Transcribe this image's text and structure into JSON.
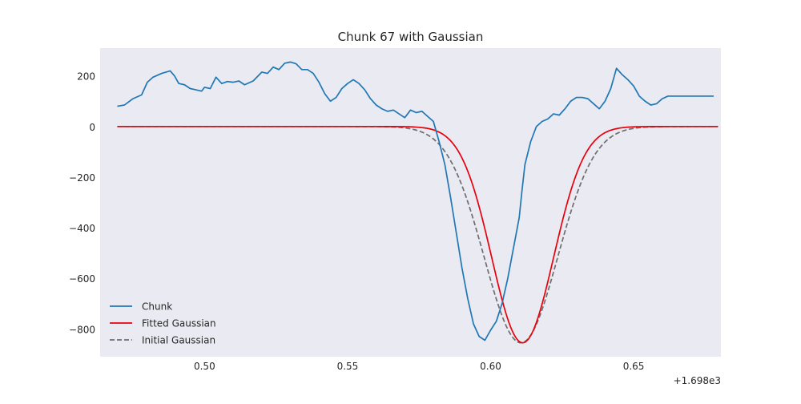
{
  "chart_data": {
    "type": "line",
    "title": "Chunk 67 with Gaussian",
    "xlabel": "",
    "ylabel": "",
    "x_offset_label": "+1.698e3",
    "xlim": [
      0.4635,
      0.6805
    ],
    "ylim": [
      -910,
      310
    ],
    "x_ticks": [
      0.5,
      0.55,
      0.6,
      0.65
    ],
    "x_tick_labels": [
      "0.50",
      "0.55",
      "0.60",
      "0.65"
    ],
    "y_ticks": [
      200,
      0,
      -200,
      -400,
      -600,
      -800
    ],
    "y_tick_labels": [
      "200",
      "0",
      "−200",
      "−400",
      "−600",
      "−800"
    ],
    "grid": false,
    "background": "#eaeaf2",
    "legend_position": "lower-left",
    "series": [
      {
        "name": "Chunk",
        "color": "#1f77b4",
        "style": "solid",
        "x": [
          0.4695,
          0.472,
          0.475,
          0.478,
          0.48,
          0.482,
          0.485,
          0.488,
          0.4895,
          0.491,
          0.493,
          0.495,
          0.497,
          0.499,
          0.5,
          0.502,
          0.504,
          0.506,
          0.508,
          0.51,
          0.512,
          0.514,
          0.517,
          0.52,
          0.522,
          0.524,
          0.526,
          0.528,
          0.53,
          0.532,
          0.534,
          0.536,
          0.538,
          0.54,
          0.542,
          0.544,
          0.546,
          0.548,
          0.55,
          0.552,
          0.554,
          0.556,
          0.558,
          0.56,
          0.562,
          0.564,
          0.566,
          0.568,
          0.57,
          0.572,
          0.574,
          0.576,
          0.578,
          0.58,
          0.582,
          0.584,
          0.586,
          0.588,
          0.59,
          0.592,
          0.594,
          0.596,
          0.598,
          0.6,
          0.602,
          0.604,
          0.606,
          0.608,
          0.61,
          0.611,
          0.612,
          0.614,
          0.616,
          0.618,
          0.62,
          0.622,
          0.624,
          0.626,
          0.628,
          0.63,
          0.632,
          0.634,
          0.636,
          0.638,
          0.64,
          0.642,
          0.644,
          0.646,
          0.648,
          0.65,
          0.652,
          0.654,
          0.656,
          0.658,
          0.66,
          0.662,
          0.664,
          0.666,
          0.668,
          0.67,
          0.672,
          0.674,
          0.676,
          0.678
        ],
        "y": [
          80,
          85,
          110,
          125,
          175,
          195,
          210,
          220,
          200,
          170,
          165,
          150,
          145,
          140,
          155,
          150,
          195,
          170,
          178,
          175,
          180,
          165,
          180,
          215,
          210,
          235,
          225,
          250,
          255,
          248,
          225,
          225,
          210,
          175,
          130,
          100,
          115,
          150,
          170,
          185,
          170,
          145,
          110,
          85,
          70,
          60,
          65,
          50,
          35,
          65,
          55,
          60,
          40,
          20,
          -60,
          -150,
          -280,
          -420,
          -560,
          -680,
          -780,
          -830,
          -845,
          -805,
          -770,
          -700,
          -600,
          -480,
          -360,
          -250,
          -150,
          -60,
          0,
          20,
          30,
          50,
          45,
          70,
          100,
          115,
          115,
          110,
          90,
          70,
          100,
          150,
          230,
          205,
          185,
          160,
          120,
          100,
          85,
          90,
          110,
          120,
          120,
          120,
          120,
          120,
          120,
          120,
          120,
          120
        ],
        "note_y_units": ""
      },
      {
        "name": "Fitted Gaussian",
        "color": "#e8000b",
        "style": "solid",
        "gaussian": {
          "amplitude": -855,
          "center": 0.6112,
          "sigma": 0.0108
        }
      },
      {
        "name": "Initial Gaussian",
        "color": "#6e6e6e",
        "style": "dashed",
        "gaussian": {
          "amplitude": -855,
          "center": 0.6106,
          "sigma": 0.0128
        }
      }
    ]
  }
}
